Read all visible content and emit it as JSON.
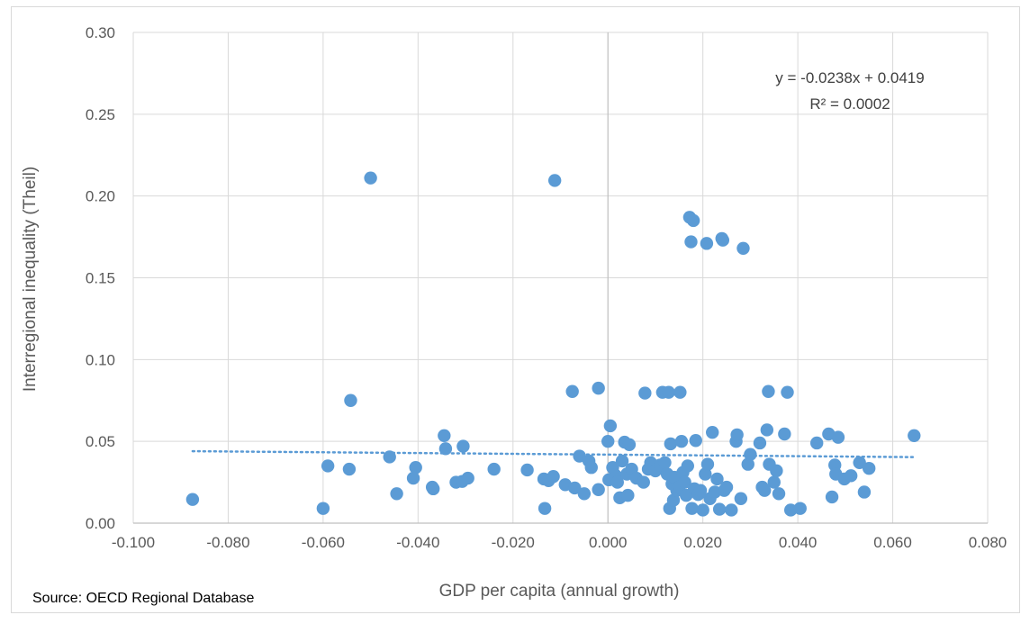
{
  "chart_data": {
    "type": "scatter",
    "title": "",
    "xlabel": "GDP per capita (annual growth)",
    "ylabel": "Interregional inequality (Theil)",
    "xlim": [
      -0.1,
      0.08
    ],
    "ylim": [
      0,
      0.3
    ],
    "x_ticks": [
      "-0.100",
      "-0.080",
      "-0.060",
      "-0.040",
      "-0.020",
      "0.000",
      "0.020",
      "0.040",
      "0.060",
      "0.080"
    ],
    "y_ticks": [
      "0.00",
      "0.05",
      "0.10",
      "0.15",
      "0.20",
      "0.25",
      "0.30"
    ],
    "grid": true,
    "marker_color": "#5b9bd5",
    "trendline": {
      "type": "linear",
      "slope": -0.0238,
      "intercept": 0.0419,
      "x_range": [
        -0.0875,
        0.0645
      ],
      "style": "dotted",
      "color": "#5b9bd5"
    },
    "annotations": [
      "y = -0.0238x + 0.0419",
      "R² = 0.0002"
    ],
    "source": "Source: OECD Regional Database",
    "points": [
      {
        "x": -0.0875,
        "y": 0.0145
      },
      {
        "x": -0.06,
        "y": 0.009
      },
      {
        "x": -0.059,
        "y": 0.035
      },
      {
        "x": -0.0545,
        "y": 0.033
      },
      {
        "x": -0.0542,
        "y": 0.075
      },
      {
        "x": -0.05,
        "y": 0.211
      },
      {
        "x": -0.046,
        "y": 0.0405
      },
      {
        "x": -0.0445,
        "y": 0.018
      },
      {
        "x": -0.041,
        "y": 0.0275
      },
      {
        "x": -0.0405,
        "y": 0.034
      },
      {
        "x": -0.0368,
        "y": 0.021
      },
      {
        "x": -0.037,
        "y": 0.022
      },
      {
        "x": -0.0345,
        "y": 0.0535
      },
      {
        "x": -0.0342,
        "y": 0.0455
      },
      {
        "x": -0.032,
        "y": 0.025
      },
      {
        "x": -0.0307,
        "y": 0.0255
      },
      {
        "x": -0.0305,
        "y": 0.047
      },
      {
        "x": -0.0295,
        "y": 0.0275
      },
      {
        "x": -0.024,
        "y": 0.033
      },
      {
        "x": -0.017,
        "y": 0.0325
      },
      {
        "x": -0.0135,
        "y": 0.027
      },
      {
        "x": -0.0133,
        "y": 0.009
      },
      {
        "x": -0.0125,
        "y": 0.026
      },
      {
        "x": -0.0115,
        "y": 0.0285
      },
      {
        "x": -0.0112,
        "y": 0.2095
      },
      {
        "x": -0.009,
        "y": 0.0235
      },
      {
        "x": -0.0075,
        "y": 0.0805
      },
      {
        "x": -0.007,
        "y": 0.0215
      },
      {
        "x": -0.006,
        "y": 0.041
      },
      {
        "x": -0.005,
        "y": 0.018
      },
      {
        "x": -0.004,
        "y": 0.038
      },
      {
        "x": -0.0035,
        "y": 0.034
      },
      {
        "x": -0.002,
        "y": 0.0825
      },
      {
        "x": -0.002,
        "y": 0.0205
      },
      {
        "x": 0.0,
        "y": 0.05
      },
      {
        "x": 0.0002,
        "y": 0.0265
      },
      {
        "x": 0.0005,
        "y": 0.0595
      },
      {
        "x": 0.001,
        "y": 0.034
      },
      {
        "x": 0.0015,
        "y": 0.0295
      },
      {
        "x": 0.002,
        "y": 0.025
      },
      {
        "x": 0.0025,
        "y": 0.0155
      },
      {
        "x": 0.003,
        "y": 0.038
      },
      {
        "x": 0.0035,
        "y": 0.0495
      },
      {
        "x": 0.004,
        "y": 0.03
      },
      {
        "x": 0.0042,
        "y": 0.017
      },
      {
        "x": 0.0045,
        "y": 0.048
      },
      {
        "x": 0.005,
        "y": 0.033
      },
      {
        "x": 0.006,
        "y": 0.0275
      },
      {
        "x": 0.0075,
        "y": 0.025
      },
      {
        "x": 0.0078,
        "y": 0.0795
      },
      {
        "x": 0.0085,
        "y": 0.033
      },
      {
        "x": 0.009,
        "y": 0.037
      },
      {
        "x": 0.01,
        "y": 0.032
      },
      {
        "x": 0.011,
        "y": 0.0355
      },
      {
        "x": 0.0115,
        "y": 0.08
      },
      {
        "x": 0.012,
        "y": 0.037
      },
      {
        "x": 0.0125,
        "y": 0.03
      },
      {
        "x": 0.0128,
        "y": 0.08
      },
      {
        "x": 0.013,
        "y": 0.009
      },
      {
        "x": 0.0132,
        "y": 0.0485
      },
      {
        "x": 0.0135,
        "y": 0.024
      },
      {
        "x": 0.0138,
        "y": 0.014
      },
      {
        "x": 0.014,
        "y": 0.028
      },
      {
        "x": 0.0145,
        "y": 0.02
      },
      {
        "x": 0.015,
        "y": 0.022
      },
      {
        "x": 0.0152,
        "y": 0.08
      },
      {
        "x": 0.0155,
        "y": 0.05
      },
      {
        "x": 0.0158,
        "y": 0.031
      },
      {
        "x": 0.0162,
        "y": 0.025
      },
      {
        "x": 0.0165,
        "y": 0.017
      },
      {
        "x": 0.0168,
        "y": 0.035
      },
      {
        "x": 0.0172,
        "y": 0.187
      },
      {
        "x": 0.0175,
        "y": 0.172
      },
      {
        "x": 0.0177,
        "y": 0.009
      },
      {
        "x": 0.018,
        "y": 0.185
      },
      {
        "x": 0.0182,
        "y": 0.021
      },
      {
        "x": 0.0185,
        "y": 0.0505
      },
      {
        "x": 0.019,
        "y": 0.0175
      },
      {
        "x": 0.0195,
        "y": 0.02
      },
      {
        "x": 0.02,
        "y": 0.008
      },
      {
        "x": 0.0205,
        "y": 0.03
      },
      {
        "x": 0.0208,
        "y": 0.171
      },
      {
        "x": 0.021,
        "y": 0.036
      },
      {
        "x": 0.0215,
        "y": 0.015
      },
      {
        "x": 0.022,
        "y": 0.0555
      },
      {
        "x": 0.0225,
        "y": 0.019
      },
      {
        "x": 0.023,
        "y": 0.027
      },
      {
        "x": 0.0235,
        "y": 0.0085
      },
      {
        "x": 0.024,
        "y": 0.174
      },
      {
        "x": 0.0242,
        "y": 0.173
      },
      {
        "x": 0.0245,
        "y": 0.02
      },
      {
        "x": 0.025,
        "y": 0.022
      },
      {
        "x": 0.026,
        "y": 0.008
      },
      {
        "x": 0.027,
        "y": 0.05
      },
      {
        "x": 0.0272,
        "y": 0.054
      },
      {
        "x": 0.028,
        "y": 0.015
      },
      {
        "x": 0.0285,
        "y": 0.168
      },
      {
        "x": 0.0295,
        "y": 0.036
      },
      {
        "x": 0.03,
        "y": 0.042
      },
      {
        "x": 0.032,
        "y": 0.049
      },
      {
        "x": 0.0325,
        "y": 0.022
      },
      {
        "x": 0.033,
        "y": 0.02
      },
      {
        "x": 0.0335,
        "y": 0.057
      },
      {
        "x": 0.0338,
        "y": 0.0805
      },
      {
        "x": 0.034,
        "y": 0.036
      },
      {
        "x": 0.035,
        "y": 0.025
      },
      {
        "x": 0.0355,
        "y": 0.032
      },
      {
        "x": 0.036,
        "y": 0.018
      },
      {
        "x": 0.0372,
        "y": 0.0545
      },
      {
        "x": 0.0378,
        "y": 0.08
      },
      {
        "x": 0.0385,
        "y": 0.008
      },
      {
        "x": 0.0405,
        "y": 0.009
      },
      {
        "x": 0.044,
        "y": 0.049
      },
      {
        "x": 0.0465,
        "y": 0.0545
      },
      {
        "x": 0.0472,
        "y": 0.016
      },
      {
        "x": 0.0478,
        "y": 0.0355
      },
      {
        "x": 0.048,
        "y": 0.03
      },
      {
        "x": 0.0485,
        "y": 0.0525
      },
      {
        "x": 0.0498,
        "y": 0.027
      },
      {
        "x": 0.0512,
        "y": 0.029
      },
      {
        "x": 0.053,
        "y": 0.037
      },
      {
        "x": 0.054,
        "y": 0.019
      },
      {
        "x": 0.055,
        "y": 0.0335
      },
      {
        "x": 0.0645,
        "y": 0.0535
      }
    ]
  }
}
